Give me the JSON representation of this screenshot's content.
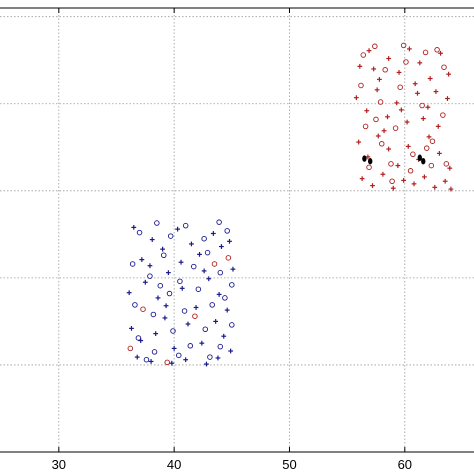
{
  "chart_data": {
    "type": "scatter",
    "title": "",
    "xlabel": "",
    "ylabel": "",
    "xlim": [
      24.9,
      66
    ],
    "ylim": [
      0,
      51
    ],
    "x_ticks": [
      30,
      40,
      50,
      60
    ],
    "x_tick_labels": [
      "30",
      "40",
      "50",
      "60"
    ],
    "y_ticks": [
      10,
      20,
      30,
      40,
      50
    ],
    "grid": true,
    "series": [
      {
        "color": "#1a1a8c",
        "marker": "plus",
        "points": [
          [
            36.5,
            25.8
          ],
          [
            37.2,
            22.1
          ],
          [
            38.1,
            24.4
          ],
          [
            39.0,
            23.3
          ],
          [
            40.3,
            25.6
          ],
          [
            41.5,
            23.9
          ],
          [
            42.2,
            22.7
          ],
          [
            43.4,
            25.1
          ],
          [
            44.1,
            23.6
          ],
          [
            44.8,
            24.2
          ],
          [
            36.1,
            18.3
          ],
          [
            37.5,
            19.5
          ],
          [
            38.6,
            17.7
          ],
          [
            39.5,
            20.6
          ],
          [
            40.7,
            18.8
          ],
          [
            41.9,
            16.6
          ],
          [
            43.0,
            19.9
          ],
          [
            43.9,
            18.1
          ],
          [
            44.6,
            16.3
          ],
          [
            45.1,
            21.0
          ],
          [
            36.3,
            14.2
          ],
          [
            37.1,
            12.8
          ],
          [
            38.4,
            13.6
          ],
          [
            39.2,
            15.4
          ],
          [
            40.0,
            11.9
          ],
          [
            41.2,
            14.7
          ],
          [
            42.4,
            12.5
          ],
          [
            43.6,
            15.0
          ],
          [
            44.3,
            13.3
          ],
          [
            44.9,
            11.6
          ],
          [
            36.8,
            10.9
          ],
          [
            38.0,
            10.4
          ],
          [
            39.8,
            10.2
          ],
          [
            41.0,
            10.6
          ],
          [
            42.8,
            10.1
          ],
          [
            43.8,
            10.8
          ],
          [
            37.9,
            21.4
          ],
          [
            40.6,
            21.8
          ],
          [
            42.6,
            20.8
          ],
          [
            39.3,
            16.8
          ]
        ]
      },
      {
        "color": "#1a1a8c",
        "marker": "circle",
        "points": [
          [
            37.0,
            25.2
          ],
          [
            38.5,
            26.3
          ],
          [
            39.7,
            24.8
          ],
          [
            41.0,
            26.0
          ],
          [
            42.6,
            24.5
          ],
          [
            43.9,
            26.4
          ],
          [
            44.6,
            25.4
          ],
          [
            36.4,
            21.6
          ],
          [
            37.9,
            20.2
          ],
          [
            39.1,
            22.6
          ],
          [
            40.5,
            19.6
          ],
          [
            41.7,
            21.3
          ],
          [
            42.9,
            22.9
          ],
          [
            44.0,
            20.6
          ],
          [
            45.0,
            19.2
          ],
          [
            36.6,
            16.9
          ],
          [
            38.2,
            15.8
          ],
          [
            39.6,
            18.2
          ],
          [
            40.9,
            16.2
          ],
          [
            42.1,
            18.7
          ],
          [
            43.3,
            16.9
          ],
          [
            44.4,
            17.7
          ],
          [
            36.9,
            13.1
          ],
          [
            38.3,
            11.5
          ],
          [
            39.9,
            13.9
          ],
          [
            41.4,
            12.2
          ],
          [
            42.7,
            14.1
          ],
          [
            44.0,
            12.1
          ],
          [
            45.0,
            14.6
          ],
          [
            37.6,
            10.6
          ],
          [
            40.4,
            11.1
          ],
          [
            43.1,
            10.9
          ],
          [
            38.8,
            19.1
          ]
        ]
      },
      {
        "color": "#b02020",
        "marker": "circle",
        "points": [
          [
            36.2,
            11.9
          ],
          [
            43.5,
            21.6
          ],
          [
            39.4,
            10.3
          ],
          [
            41.8,
            15.6
          ],
          [
            44.7,
            22.3
          ],
          [
            37.3,
            16.4
          ]
        ]
      },
      {
        "color": "#b02020",
        "marker": "plus",
        "points": [
          [
            56.1,
            44.3
          ],
          [
            56.9,
            46.1
          ],
          [
            57.8,
            42.8
          ],
          [
            58.6,
            45.2
          ],
          [
            59.5,
            43.6
          ],
          [
            60.4,
            46.3
          ],
          [
            61.3,
            44.7
          ],
          [
            62.2,
            42.9
          ],
          [
            63.1,
            45.8
          ],
          [
            63.8,
            43.4
          ],
          [
            55.8,
            40.7
          ],
          [
            56.7,
            39.2
          ],
          [
            57.6,
            41.6
          ],
          [
            58.5,
            38.5
          ],
          [
            59.3,
            40.1
          ],
          [
            60.2,
            37.9
          ],
          [
            61.1,
            41.2
          ],
          [
            62.0,
            39.6
          ],
          [
            62.9,
            37.4
          ],
          [
            63.7,
            40.6
          ],
          [
            56.0,
            35.6
          ],
          [
            56.8,
            33.9
          ],
          [
            57.7,
            36.3
          ],
          [
            58.6,
            34.8
          ],
          [
            59.4,
            32.9
          ],
          [
            60.3,
            35.1
          ],
          [
            61.2,
            33.6
          ],
          [
            62.1,
            36.2
          ],
          [
            63.0,
            34.3
          ],
          [
            63.9,
            32.6
          ],
          [
            56.3,
            31.4
          ],
          [
            57.2,
            30.6
          ],
          [
            58.1,
            31.9
          ],
          [
            59.0,
            30.3
          ],
          [
            59.9,
            31.2
          ],
          [
            60.8,
            30.8
          ],
          [
            61.7,
            31.6
          ],
          [
            62.6,
            30.4
          ],
          [
            63.5,
            31.1
          ],
          [
            64.0,
            30.2
          ],
          [
            57.3,
            44.0
          ],
          [
            60.9,
            42.3
          ],
          [
            62.7,
            41.4
          ],
          [
            58.2,
            36.9
          ],
          [
            61.6,
            38.3
          ],
          [
            59.7,
            39.3
          ]
        ]
      },
      {
        "color": "#b02020",
        "marker": "circle",
        "points": [
          [
            56.4,
            45.6
          ],
          [
            57.4,
            46.6
          ],
          [
            58.3,
            43.9
          ],
          [
            59.9,
            46.7
          ],
          [
            61.8,
            45.9
          ],
          [
            63.4,
            44.2
          ],
          [
            56.2,
            42.1
          ],
          [
            57.9,
            40.2
          ],
          [
            59.6,
            41.9
          ],
          [
            61.5,
            39.8
          ],
          [
            63.3,
            38.7
          ],
          [
            56.6,
            37.4
          ],
          [
            58.0,
            35.4
          ],
          [
            59.2,
            37.2
          ],
          [
            60.7,
            34.2
          ],
          [
            62.4,
            35.7
          ],
          [
            63.6,
            33.1
          ],
          [
            56.9,
            32.7
          ],
          [
            58.8,
            33.1
          ],
          [
            60.5,
            32.3
          ],
          [
            62.3,
            32.9
          ],
          [
            57.5,
            38.2
          ],
          [
            60.1,
            44.8
          ],
          [
            62.8,
            46.2
          ],
          [
            58.9,
            31.1
          ],
          [
            61.9,
            34.9
          ]
        ]
      },
      {
        "color": "#000000",
        "marker": "dot",
        "points": [
          [
            56.5,
            33.7
          ],
          [
            57.0,
            33.4
          ],
          [
            61.3,
            33.8
          ],
          [
            61.6,
            33.4
          ]
        ]
      }
    ]
  }
}
